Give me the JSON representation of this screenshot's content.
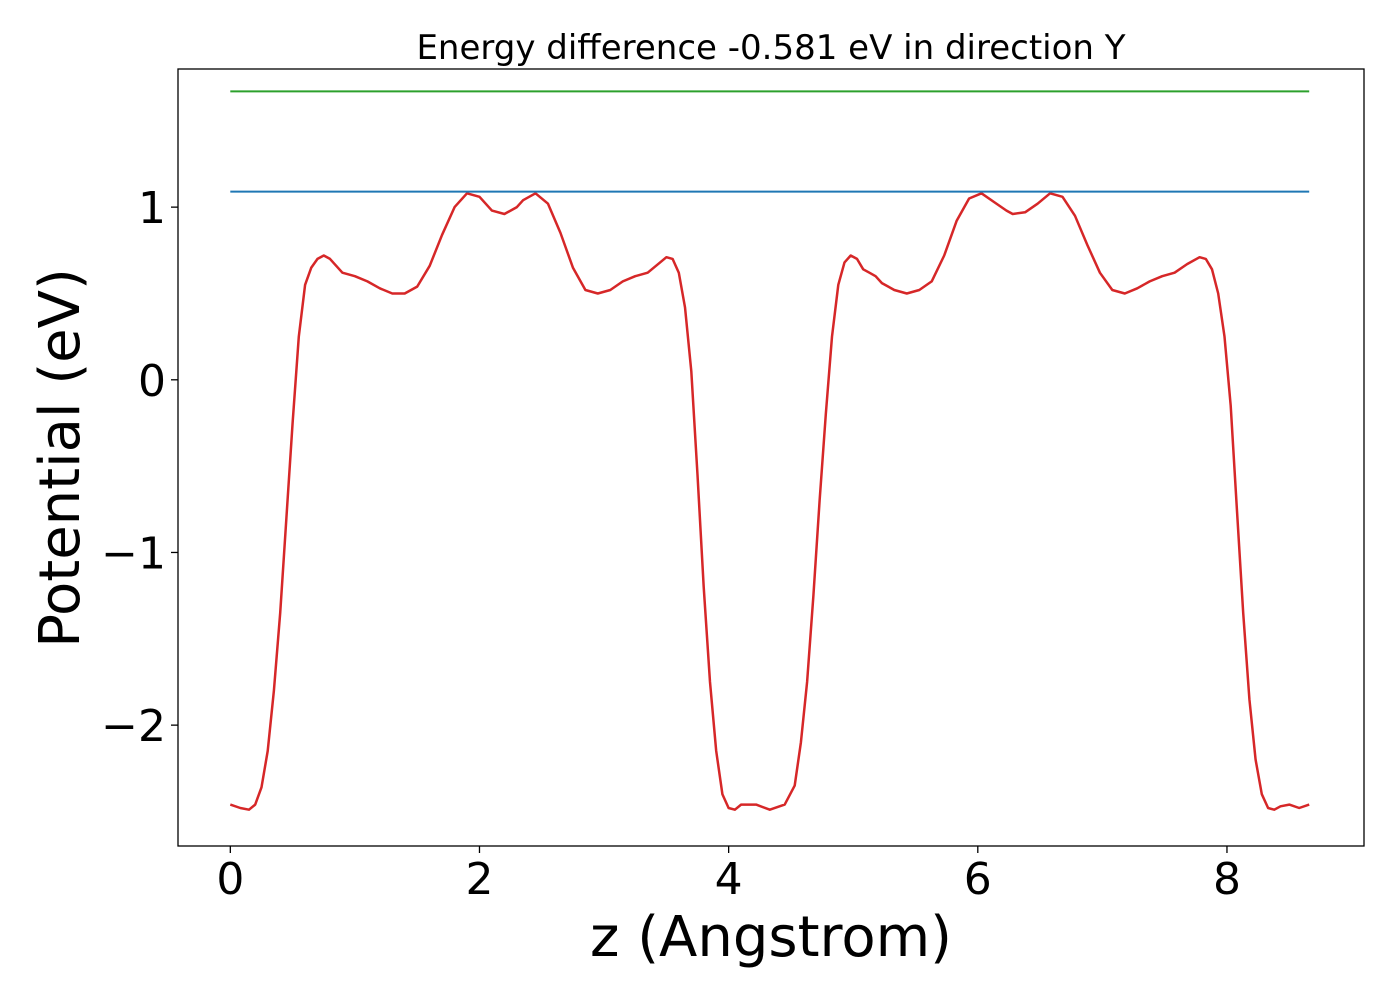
{
  "chart_data": {
    "type": "line",
    "title": "Energy difference -0.581 eV in direction Y",
    "xlabel": "z (Angstrom)",
    "ylabel": "Potential (eV)",
    "xlim": [
      -0.42,
      9.1
    ],
    "ylim": [
      -2.7,
      1.8
    ],
    "x_ticks": [
      0,
      2,
      4,
      6,
      8
    ],
    "x_tick_labels": [
      "0",
      "2",
      "4",
      "6",
      "8"
    ],
    "y_ticks": [
      -2,
      -1,
      0,
      1
    ],
    "y_tick_labels": [
      "−2",
      "−1",
      "0",
      "1"
    ],
    "grid": false,
    "legend": "none",
    "series": [
      {
        "color": "#d62728",
        "x": [
          0.0,
          0.08,
          0.15,
          0.2,
          0.25,
          0.3,
          0.35,
          0.4,
          0.45,
          0.5,
          0.55,
          0.6,
          0.65,
          0.7,
          0.75,
          0.8,
          0.85,
          0.9,
          1.0,
          1.1,
          1.2,
          1.3,
          1.4,
          1.5,
          1.6,
          1.7,
          1.8,
          1.9,
          2.0,
          2.1,
          2.2,
          2.3,
          2.35,
          2.45,
          2.55,
          2.65,
          2.75,
          2.85,
          2.95,
          3.05,
          3.15,
          3.25,
          3.35,
          3.45,
          3.5,
          3.55,
          3.6,
          3.65,
          3.7,
          3.75,
          3.8,
          3.85,
          3.9,
          3.95,
          4.0,
          4.05,
          4.1,
          4.15,
          4.22,
          4.33,
          4.45,
          4.53,
          4.58,
          4.63,
          4.68,
          4.73,
          4.78,
          4.83,
          4.88,
          4.93,
          4.98,
          5.03,
          5.08,
          5.13,
          5.18,
          5.23,
          5.33,
          5.43,
          5.53,
          5.63,
          5.73,
          5.83,
          5.93,
          6.03,
          6.13,
          6.23,
          6.28,
          6.38,
          6.48,
          6.58,
          6.68,
          6.78,
          6.88,
          6.98,
          7.08,
          7.18,
          7.28,
          7.38,
          7.48,
          7.58,
          7.68,
          7.78,
          7.83,
          7.88,
          7.93,
          7.98,
          8.03,
          8.08,
          8.13,
          8.18,
          8.23,
          8.28,
          8.33,
          8.38,
          8.43,
          8.5,
          8.58,
          8.66
        ],
        "y": [
          -2.46,
          -2.48,
          -2.49,
          -2.46,
          -2.36,
          -2.15,
          -1.8,
          -1.35,
          -0.8,
          -0.25,
          0.25,
          0.55,
          0.65,
          0.7,
          0.72,
          0.7,
          0.66,
          0.62,
          0.6,
          0.57,
          0.53,
          0.5,
          0.5,
          0.54,
          0.66,
          0.84,
          1.0,
          1.08,
          1.06,
          0.98,
          0.96,
          1.0,
          1.04,
          1.08,
          1.02,
          0.85,
          0.65,
          0.52,
          0.5,
          0.52,
          0.57,
          0.6,
          0.62,
          0.68,
          0.71,
          0.7,
          0.62,
          0.42,
          0.05,
          -0.55,
          -1.2,
          -1.75,
          -2.15,
          -2.4,
          -2.48,
          -2.49,
          -2.46,
          -2.46,
          -2.46,
          -2.49,
          -2.46,
          -2.35,
          -2.1,
          -1.75,
          -1.25,
          -0.7,
          -0.2,
          0.25,
          0.55,
          0.68,
          0.72,
          0.7,
          0.64,
          0.62,
          0.6,
          0.56,
          0.52,
          0.5,
          0.52,
          0.57,
          0.72,
          0.92,
          1.05,
          1.08,
          1.03,
          0.98,
          0.96,
          0.97,
          1.02,
          1.08,
          1.06,
          0.95,
          0.78,
          0.62,
          0.52,
          0.5,
          0.53,
          0.57,
          0.6,
          0.62,
          0.67,
          0.71,
          0.7,
          0.64,
          0.5,
          0.25,
          -0.15,
          -0.75,
          -1.35,
          -1.85,
          -2.2,
          -2.4,
          -2.48,
          -2.49,
          -2.47,
          -2.46,
          -2.48,
          -2.46
        ]
      },
      {
        "color": "#1f77b4",
        "x": [
          0.0,
          8.66
        ],
        "y": [
          1.09,
          1.09
        ]
      },
      {
        "color": "#2ca02c",
        "x": [
          0.0,
          8.66
        ],
        "y": [
          1.67,
          1.67
        ]
      }
    ]
  }
}
